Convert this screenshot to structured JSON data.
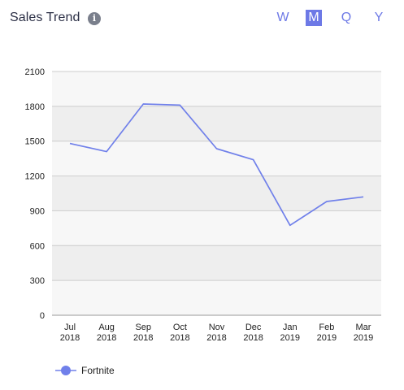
{
  "header": {
    "title": "Sales Trend",
    "info_icon": "info-icon",
    "info_glyph": "i"
  },
  "period_tabs": [
    {
      "label": "W",
      "active": false
    },
    {
      "label": "M",
      "active": true
    },
    {
      "label": "Q",
      "active": false
    },
    {
      "label": "Y",
      "active": false
    }
  ],
  "colors": {
    "accent": "#6d79e6",
    "line": "#7080ea",
    "band": "#eeeeee",
    "grid": "#cccccc"
  },
  "chart_data": {
    "type": "line",
    "title": "",
    "xlabel": "",
    "ylabel": "",
    "categories": [
      [
        "Jul",
        "2018"
      ],
      [
        "Aug",
        "2018"
      ],
      [
        "Sep",
        "2018"
      ],
      [
        "Oct",
        "2018"
      ],
      [
        "Nov",
        "2018"
      ],
      [
        "Dec",
        "2018"
      ],
      [
        "Jan",
        "2019"
      ],
      [
        "Feb",
        "2019"
      ],
      [
        "Mar",
        "2019"
      ]
    ],
    "series": [
      {
        "name": "Fortnite",
        "values": [
          1480,
          1410,
          1820,
          1810,
          1435,
          1340,
          775,
          980,
          1020
        ]
      }
    ],
    "ylim": [
      0,
      2100
    ],
    "yticks": [
      "0",
      "300",
      "600",
      "900",
      "1200",
      "1500",
      "1800",
      "2100"
    ],
    "grid": true,
    "legend": "bottom-left"
  }
}
